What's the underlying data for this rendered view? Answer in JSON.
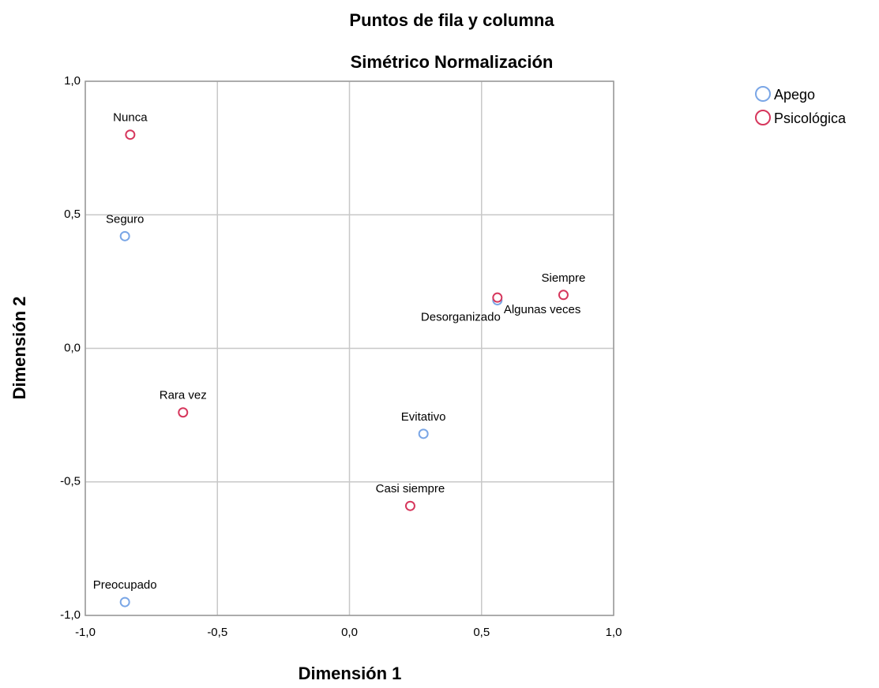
{
  "chart_data": {
    "type": "scatter",
    "title": "Puntos de fila y columna",
    "subtitle": "Simétrico Normalización",
    "x_label": "Dimensión 1",
    "y_label": "Dimensión 2",
    "xlim": [
      -1.0,
      1.0
    ],
    "ylim": [
      -1.0,
      1.0
    ],
    "xticks": [
      {
        "value": -1.0,
        "label": "-1,0"
      },
      {
        "value": -0.5,
        "label": "-0,5"
      },
      {
        "value": 0,
        "label": "0,0"
      },
      {
        "value": 0.5,
        "label": "0,5"
      },
      {
        "value": 1.0,
        "label": "1,0"
      }
    ],
    "yticks": [
      {
        "value": -1.0,
        "label": "-1,0"
      },
      {
        "value": -0.5,
        "label": "-0,5"
      },
      {
        "value": 0,
        "label": "0,0"
      },
      {
        "value": 0.5,
        "label": "0,5"
      },
      {
        "value": 1.0,
        "label": "1,0"
      }
    ],
    "grid": true,
    "legend": "right",
    "series": [
      {
        "name": "Apego",
        "color": "#7aa6e6",
        "labels": [
          "Seguro",
          "Desorganizado",
          "Evitativo",
          "Preocupado"
        ],
        "x": [
          -0.85,
          0.56,
          0.28,
          -0.85
        ],
        "values": [
          0.42,
          0.18,
          -0.32,
          -0.95
        ]
      },
      {
        "name": "Psicológica",
        "color": "#d6365c",
        "labels": [
          "Nunca",
          "Siempre",
          "Algunas veces",
          "Rara vez",
          "Casi siempre"
        ],
        "x": [
          -0.83,
          0.81,
          0.56,
          -0.63,
          0.23
        ],
        "values": [
          0.8,
          0.2,
          0.19,
          -0.24,
          -0.59
        ]
      }
    ]
  }
}
